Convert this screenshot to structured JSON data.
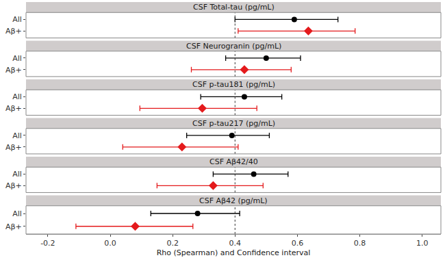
{
  "chart_data": {
    "type": "forest",
    "xlabel": "Rho (Spearman) and Confidence interval",
    "xlim": [
      -0.27,
      1.06
    ],
    "xticks": [
      {
        "value": -0.2,
        "label": "-0.2"
      },
      {
        "value": 0,
        "label": "0.0"
      },
      {
        "value": 0.2,
        "label": "0.2"
      },
      {
        "value": 0.4,
        "label": "0.4"
      },
      {
        "value": 0.6,
        "label": "0.6"
      },
      {
        "value": 0.8,
        "label": "0.8"
      },
      {
        "value": 1.0,
        "label": "1.0"
      }
    ],
    "reference_x": 0.4,
    "series": [
      {
        "name": "All",
        "color": "#000000",
        "marker": "circle"
      },
      {
        "name": "Aβ+",
        "color": "#e41a1c",
        "marker": "diamond"
      }
    ],
    "panels": [
      {
        "title": "CSF Total-tau (pg/mL)",
        "values": [
          0.59,
          0.635
        ],
        "ci_low": [
          0.4,
          0.41
        ],
        "ci_high": [
          0.73,
          0.785
        ]
      },
      {
        "title": "CSF Neurogranin (pg/mL)",
        "values": [
          0.5,
          0.43
        ],
        "ci_low": [
          0.37,
          0.26
        ],
        "ci_high": [
          0.61,
          0.58
        ]
      },
      {
        "title": "CSF p-tau181 (pg/mL)",
        "values": [
          0.43,
          0.295
        ],
        "ci_low": [
          0.29,
          0.095
        ],
        "ci_high": [
          0.55,
          0.47
        ]
      },
      {
        "title": "CSF p-tau217 (pg/mL)",
        "values": [
          0.39,
          0.23
        ],
        "ci_low": [
          0.245,
          0.04
        ],
        "ci_high": [
          0.51,
          0.41
        ]
      },
      {
        "title": "CSF Aβ42/40",
        "values": [
          0.46,
          0.33
        ],
        "ci_low": [
          0.33,
          0.15
        ],
        "ci_high": [
          0.57,
          0.49
        ]
      },
      {
        "title": "CSF Aβ42 (pg/mL)",
        "values": [
          0.28,
          0.08
        ],
        "ci_low": [
          0.13,
          -0.11
        ],
        "ci_high": [
          0.415,
          0.265
        ]
      }
    ]
  }
}
